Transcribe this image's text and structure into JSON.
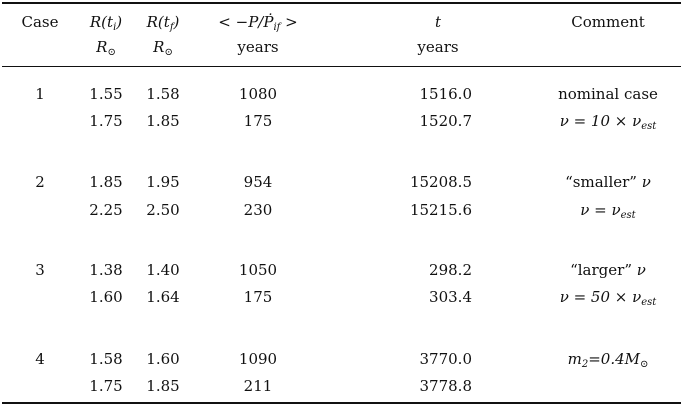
{
  "header": {
    "row1": [
      {
        "text": "Case"
      },
      {
        "pre": "R(t",
        "sub": "i",
        "post": ")",
        "math": true
      },
      {
        "pre": "R(t",
        "sub": "f",
        "post": ")",
        "math": true
      },
      {
        "pre": "< −P/Ṗ",
        "sub": "if",
        "post": " >",
        "math": true
      },
      {
        "pre": "t",
        "math": true
      },
      {
        "text": "Comment"
      }
    ],
    "row2": [
      {
        "text": ""
      },
      {
        "pre": "R",
        "sub": "⊙",
        "math": true
      },
      {
        "pre": "R",
        "sub": "⊙",
        "math": true
      },
      {
        "text": "years"
      },
      {
        "text": "years"
      },
      {
        "text": ""
      }
    ]
  },
  "rows": [
    {
      "case": "1",
      "r_i": "1.55",
      "r_f": "1.58",
      "p": "1080",
      "t": "1516.0",
      "comment": {
        "pre": "nominal case"
      }
    },
    {
      "case": "",
      "r_i": "1.75",
      "r_f": "1.85",
      "p": "175",
      "t": "1520.7",
      "comment": {
        "pre": "ν = 10 × ν",
        "sub": "est",
        "math": true
      }
    },
    {
      "case": "2",
      "r_i": "1.85",
      "r_f": "1.95",
      "p": "954",
      "t": "15208.5",
      "comment": {
        "pre": "“smaller” ",
        "mathpart": "ν"
      }
    },
    {
      "case": "",
      "r_i": "2.25",
      "r_f": "2.50",
      "p": "230",
      "t": "15215.6",
      "comment": {
        "pre": "ν = ν",
        "sub": "est",
        "math": true
      }
    },
    {
      "case": "3",
      "r_i": "1.38",
      "r_f": "1.40",
      "p": "1050",
      "t": "298.2",
      "comment": {
        "pre": "“larger” ",
        "mathpart": "ν"
      }
    },
    {
      "case": "",
      "r_i": "1.60",
      "r_f": "1.64",
      "p": "175",
      "t": "303.4",
      "comment": {
        "pre": "ν = 50 × ν",
        "sub": "est",
        "math": true
      }
    },
    {
      "case": "4",
      "r_i": "1.58",
      "r_f": "1.60",
      "p": "1090",
      "t": "3770.0",
      "comment": {
        "pre": "m",
        "sub": "2",
        "post": "=0.4M",
        "sub2": "⊙",
        "math": true
      }
    },
    {
      "case": "",
      "r_i": "1.75",
      "r_f": "1.85",
      "p": "211",
      "t": "3778.8",
      "comment": {
        "pre": ""
      }
    }
  ]
}
